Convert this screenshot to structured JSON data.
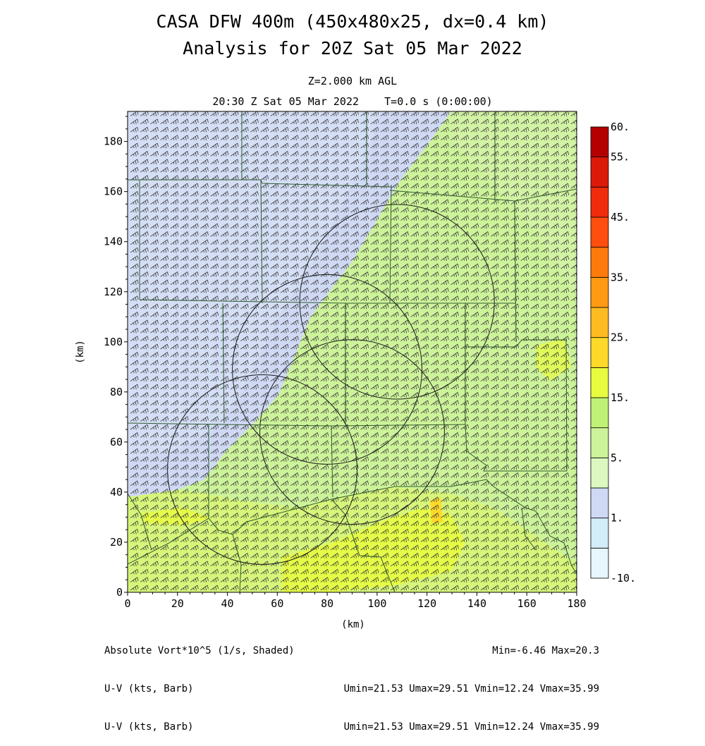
{
  "title": "CASA DFW 400m (450x480x25, dx=0.4 km)",
  "subtitle": "Analysis for 20Z Sat 05 Mar 2022",
  "level_label": "Z=2.000 km AGL",
  "time_label": "20:30 Z Sat 05 Mar 2022    T=0.0 s (0:00:00)",
  "footer": {
    "field_label": "Absolute Vort*10^5 (1/s, Shaded)",
    "vector_label_1": "U-V (kts, Barb)",
    "vector_label_2": "U-V (kts, Barb)",
    "minmax": "Min=-6.46 Max=20.3",
    "uv_stats_1": "Umin=21.53 Umax=29.51 Vmin=12.24 Vmax=35.99",
    "uv_stats_2": "Umin=21.53 Umax=29.51 Vmin=12.24 Vmax=35.99"
  },
  "chart_data": {
    "type": "heatmap",
    "xlabel": "(km)",
    "ylabel": "(km)",
    "xlim": [
      0,
      180
    ],
    "ylim": [
      0,
      192
    ],
    "xticks": [
      0,
      20,
      40,
      60,
      80,
      100,
      120,
      140,
      160,
      180
    ],
    "yticks": [
      0,
      20,
      40,
      60,
      80,
      100,
      120,
      140,
      160,
      180
    ],
    "colorbar": {
      "levels": [
        -10,
        -1,
        1,
        3,
        5,
        10,
        15,
        20,
        25,
        30,
        35,
        40,
        45,
        50,
        55,
        60
      ],
      "labels": [
        "-10.",
        "1.",
        "5.",
        "15.",
        "25.",
        "35.",
        "45.",
        "55.",
        "60."
      ],
      "label_values": [
        -10,
        1,
        5,
        15,
        25,
        35,
        45,
        55,
        60
      ],
      "colors": [
        "#e6f6fc",
        "#d2ecf8",
        "#cfd9f4",
        "#dcf7c0",
        "#cdf39a",
        "#bff176",
        "#e8fb3e",
        "#ffd92a",
        "#ffbb22",
        "#ff9a14",
        "#ff7a0c",
        "#ff4e10",
        "#f02c0c",
        "#dc1a0a",
        "#b40000"
      ]
    },
    "range_rings_km": [
      {
        "x": 108,
        "y": 116,
        "r": 39
      },
      {
        "x": 80,
        "y": 89,
        "r": 38
      },
      {
        "x": 54,
        "y": 49,
        "r": 38
      },
      {
        "x": 90,
        "y": 64,
        "r": 37
      }
    ],
    "wind_barbs": {
      "u_range_kts": [
        21.53,
        29.51
      ],
      "v_range_kts": [
        12.24,
        35.99
      ]
    },
    "field_min": -6.46,
    "field_max": 20.3
  }
}
